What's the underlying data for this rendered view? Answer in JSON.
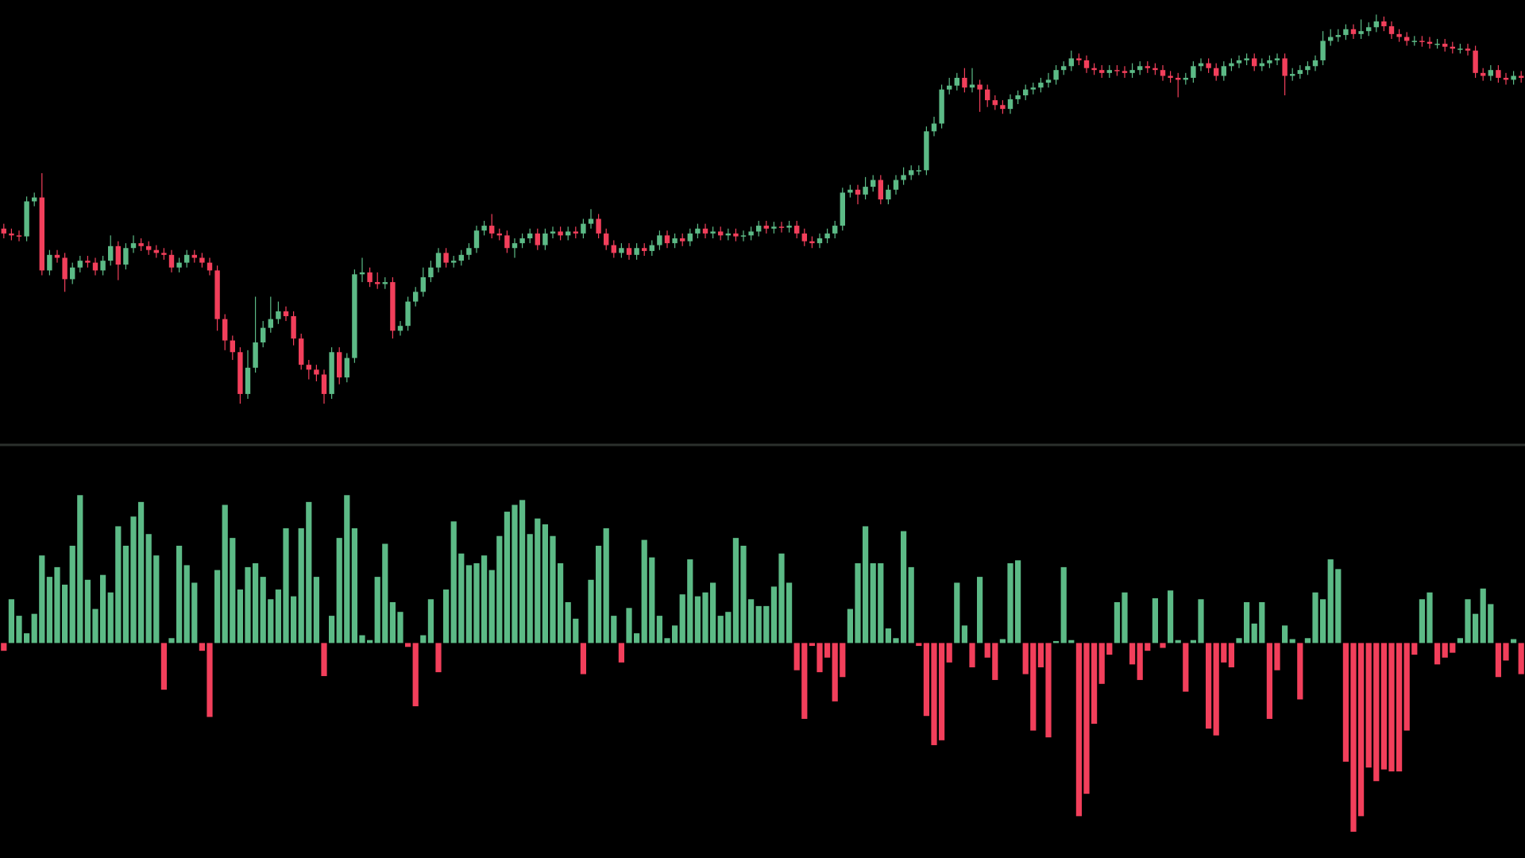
{
  "chart_data": [
    {
      "type": "candlestick",
      "up_color": "#5cba86",
      "down_color": "#f23f5b",
      "ylim": [
        0,
        460
      ],
      "open": [
        225,
        220,
        218,
        217,
        253,
        257,
        182,
        198,
        195,
        173,
        185,
        192,
        190,
        182,
        192,
        207,
        188,
        205,
        210,
        207,
        203,
        200,
        198,
        185,
        190,
        198,
        195,
        190,
        182,
        132,
        110,
        98,
        55,
        82,
        108,
        123,
        132,
        140,
        135,
        112,
        85,
        80,
        75,
        55,
        98,
        72,
        92,
        178,
        180,
        170,
        168,
        170,
        120,
        125,
        150,
        160,
        175,
        185,
        200,
        190,
        192,
        198,
        205,
        223,
        228,
        220,
        218,
        205,
        210,
        215,
        220,
        208,
        220,
        222,
        218,
        222,
        220,
        230,
        235,
        220,
        208,
        200,
        205,
        198,
        205,
        202,
        208,
        218,
        210,
        215,
        212,
        220,
        225,
        220,
        222,
        218,
        220,
        217,
        218,
        222,
        228,
        225,
        227,
        226,
        228,
        220,
        212,
        210,
        215,
        220,
        228,
        262,
        265,
        260,
        268,
        275,
        255,
        265,
        275,
        280,
        285,
        285,
        325,
        333,
        368,
        372,
        380,
        370,
        373,
        368,
        357,
        352,
        348,
        358,
        362,
        368,
        370,
        375,
        378,
        388,
        392,
        400,
        398,
        390,
        388,
        385,
        388,
        387,
        385,
        388,
        392,
        390,
        388,
        382,
        380,
        378,
        380,
        392,
        395,
        390,
        382,
        392,
        395,
        398,
        400,
        392,
        395,
        398,
        400,
        382,
        384,
        388,
        392,
        398,
        418,
        422,
        424,
        430,
        425,
        428,
        432,
        438,
        433,
        425,
        422,
        418,
        418,
        417,
        415,
        415,
        412,
        410,
        410,
        408,
        385,
        382,
        388,
        380,
        378,
        382
      ],
      "high": [
        230,
        225,
        223,
        258,
        262,
        282,
        203,
        203,
        200,
        190,
        197,
        197,
        195,
        197,
        218,
        212,
        210,
        218,
        215,
        212,
        208,
        205,
        203,
        195,
        203,
        203,
        200,
        195,
        187,
        137,
        115,
        103,
        100,
        155,
        130,
        155,
        150,
        145,
        140,
        117,
        90,
        85,
        80,
        103,
        103,
        97,
        183,
        195,
        185,
        180,
        175,
        175,
        130,
        155,
        165,
        185,
        192,
        205,
        205,
        197,
        203,
        210,
        228,
        233,
        240,
        225,
        223,
        215,
        220,
        225,
        225,
        225,
        227,
        227,
        227,
        227,
        235,
        245,
        240,
        225,
        213,
        210,
        210,
        210,
        210,
        213,
        223,
        223,
        220,
        220,
        225,
        230,
        230,
        227,
        227,
        225,
        225,
        223,
        227,
        233,
        233,
        232,
        232,
        233,
        233,
        225,
        217,
        220,
        225,
        233,
        267,
        270,
        270,
        278,
        280,
        280,
        270,
        280,
        288,
        290,
        290,
        330,
        340,
        373,
        380,
        385,
        390,
        390,
        378,
        373,
        362,
        357,
        363,
        367,
        373,
        375,
        380,
        385,
        393,
        397,
        408,
        405,
        403,
        395,
        393,
        393,
        393,
        392,
        395,
        397,
        397,
        395,
        393,
        387,
        385,
        385,
        397,
        400,
        400,
        395,
        397,
        400,
        403,
        405,
        405,
        400,
        403,
        405,
        405,
        390,
        393,
        397,
        403,
        428,
        430,
        430,
        435,
        435,
        440,
        437,
        445,
        443,
        438,
        430,
        427,
        423,
        423,
        422,
        420,
        420,
        417,
        415,
        415,
        413,
        390,
        393,
        393,
        385,
        387,
        387
      ],
      "low": [
        215,
        213,
        212,
        212,
        248,
        177,
        177,
        190,
        160,
        168,
        180,
        185,
        177,
        177,
        187,
        172,
        183,
        200,
        202,
        198,
        195,
        193,
        180,
        180,
        185,
        190,
        185,
        177,
        120,
        100,
        90,
        45,
        50,
        77,
        103,
        118,
        127,
        130,
        105,
        80,
        70,
        68,
        45,
        50,
        65,
        67,
        87,
        170,
        165,
        163,
        163,
        112,
        115,
        120,
        145,
        155,
        170,
        180,
        185,
        185,
        187,
        193,
        200,
        218,
        215,
        213,
        200,
        195,
        205,
        210,
        203,
        203,
        215,
        213,
        213,
        215,
        215,
        225,
        215,
        203,
        195,
        195,
        193,
        193,
        197,
        197,
        203,
        205,
        205,
        207,
        207,
        215,
        215,
        215,
        213,
        213,
        212,
        212,
        213,
        217,
        220,
        220,
        221,
        221,
        215,
        207,
        205,
        205,
        210,
        215,
        223,
        257,
        250,
        255,
        263,
        250,
        250,
        260,
        270,
        275,
        280,
        280,
        320,
        328,
        363,
        367,
        365,
        365,
        345,
        350,
        347,
        343,
        343,
        353,
        357,
        363,
        365,
        370,
        373,
        383,
        387,
        393,
        385,
        383,
        380,
        380,
        382,
        380,
        380,
        383,
        385,
        383,
        377,
        375,
        360,
        373,
        375,
        387,
        385,
        377,
        377,
        387,
        390,
        393,
        387,
        387,
        390,
        393,
        362,
        377,
        379,
        383,
        387,
        393,
        413,
        417,
        419,
        420,
        420,
        423,
        427,
        428,
        420,
        417,
        413,
        413,
        412,
        410,
        410,
        407,
        405,
        405,
        403,
        380,
        377,
        377,
        375,
        373,
        373,
        375
      ],
      "close": [
        220,
        218,
        217,
        253,
        257,
        182,
        198,
        195,
        173,
        185,
        192,
        190,
        182,
        192,
        207,
        188,
        205,
        210,
        207,
        203,
        200,
        198,
        185,
        190,
        198,
        195,
        190,
        182,
        132,
        110,
        98,
        55,
        82,
        108,
        123,
        132,
        140,
        135,
        112,
        85,
        80,
        75,
        55,
        98,
        72,
        92,
        178,
        180,
        170,
        168,
        170,
        120,
        125,
        150,
        160,
        175,
        185,
        200,
        190,
        192,
        198,
        205,
        223,
        228,
        220,
        218,
        205,
        210,
        215,
        220,
        208,
        220,
        222,
        218,
        222,
        220,
        230,
        235,
        220,
        208,
        200,
        205,
        198,
        205,
        202,
        208,
        218,
        210,
        215,
        212,
        220,
        225,
        220,
        222,
        218,
        220,
        217,
        218,
        222,
        228,
        225,
        227,
        226,
        228,
        220,
        212,
        210,
        215,
        220,
        228,
        262,
        265,
        260,
        268,
        275,
        255,
        265,
        275,
        280,
        285,
        285,
        325,
        333,
        368,
        372,
        380,
        370,
        373,
        368,
        357,
        352,
        348,
        358,
        362,
        368,
        370,
        375,
        378,
        388,
        392,
        400,
        398,
        390,
        388,
        385,
        388,
        387,
        385,
        388,
        392,
        390,
        388,
        382,
        380,
        378,
        380,
        392,
        395,
        390,
        382,
        392,
        395,
        398,
        400,
        392,
        395,
        398,
        400,
        382,
        384,
        388,
        392,
        398,
        418,
        422,
        424,
        430,
        425,
        428,
        432,
        438,
        433,
        425,
        422,
        418,
        418,
        417,
        415,
        415,
        412,
        410,
        410,
        408,
        385,
        382,
        388,
        380,
        378,
        382,
        380
      ]
    },
    {
      "type": "bar",
      "positive_color": "#5cba86",
      "negative_color": "#f23f5b",
      "ylim": [
        -221,
        201
      ],
      "values": [
        -8,
        45,
        28,
        10,
        30,
        90,
        68,
        78,
        60,
        100,
        152,
        65,
        35,
        70,
        52,
        120,
        100,
        130,
        145,
        112,
        90,
        -48,
        5,
        100,
        80,
        62,
        -8,
        -76,
        75,
        142,
        108,
        55,
        78,
        82,
        68,
        45,
        55,
        118,
        48,
        118,
        145,
        68,
        -34,
        28,
        108,
        152,
        118,
        8,
        3,
        68,
        102,
        42,
        32,
        -4,
        -65,
        8,
        45,
        -30,
        55,
        125,
        92,
        80,
        82,
        90,
        75,
        110,
        135,
        142,
        147,
        112,
        128,
        122,
        110,
        82,
        42,
        25,
        -32,
        65,
        100,
        118,
        28,
        -20,
        36,
        10,
        106,
        88,
        28,
        5,
        18,
        50,
        86,
        48,
        52,
        62,
        28,
        32,
        108,
        100,
        45,
        38,
        38,
        58,
        92,
        62,
        -28,
        -78,
        -3,
        -30,
        -15,
        -60,
        -35,
        35,
        82,
        120,
        82,
        82,
        15,
        5,
        115,
        78,
        -3,
        -75,
        -105,
        -100,
        -20,
        62,
        18,
        -25,
        68,
        -15,
        -38,
        4,
        82,
        85,
        -32,
        -90,
        -25,
        -97,
        2,
        78,
        3,
        -178,
        -155,
        -83,
        -42,
        -12,
        42,
        52,
        -22,
        -38,
        -8,
        46,
        -5,
        54,
        3,
        -50,
        3,
        45,
        -88,
        -95,
        -20,
        -25,
        5,
        42,
        20,
        42,
        -78,
        -28,
        18,
        4,
        -58,
        5,
        52,
        45,
        86,
        76,
        -122,
        -194,
        -178,
        -128,
        -142,
        -130,
        -132,
        -132,
        -90,
        -12,
        45,
        52,
        -22,
        -15,
        -10,
        5,
        45,
        30,
        56,
        40,
        -35,
        -18,
        4,
        -32
      ]
    }
  ]
}
